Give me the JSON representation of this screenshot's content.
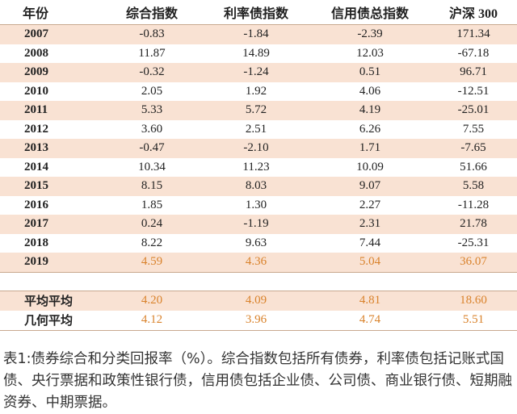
{
  "table": {
    "headers": [
      "年份",
      "综合指数",
      "利率债指数",
      "信用债总指数",
      "沪深 300"
    ],
    "rows": [
      [
        "2007",
        "-0.83",
        "-1.84",
        "-2.39",
        "171.34"
      ],
      [
        "2008",
        "11.87",
        "14.89",
        "12.03",
        "-67.18"
      ],
      [
        "2009",
        "-0.32",
        "-1.24",
        "0.51",
        "96.71"
      ],
      [
        "2010",
        "2.05",
        "1.92",
        "4.06",
        "-12.51"
      ],
      [
        "2011",
        "5.33",
        "5.72",
        "4.19",
        "-25.01"
      ],
      [
        "2012",
        "3.60",
        "2.51",
        "6.26",
        "7.55"
      ],
      [
        "2013",
        "-0.47",
        "-2.10",
        "1.71",
        "-7.65"
      ],
      [
        "2014",
        "10.34",
        "11.23",
        "10.09",
        "51.66"
      ],
      [
        "2015",
        "8.15",
        "8.03",
        "9.07",
        "5.58"
      ],
      [
        "2016",
        "1.85",
        "1.30",
        "2.27",
        "-11.28"
      ],
      [
        "2017",
        "0.24",
        "-1.19",
        "2.31",
        "21.78"
      ],
      [
        "2018",
        "8.22",
        "9.63",
        "7.44",
        "-25.31"
      ],
      [
        "2019",
        "4.59",
        "4.36",
        "5.04",
        "36.07"
      ]
    ],
    "summary": [
      [
        "平均平均",
        "4.20",
        "4.09",
        "4.81",
        "18.60"
      ],
      [
        "几何平均",
        "4.12",
        "3.96",
        "4.74",
        "5.51"
      ]
    ],
    "highlight_color": "#d9822b",
    "stripe_color": "#f9e2d3"
  },
  "caption": "表1:债券综合和分类回报率（%）。综合指数包括所有债券，利率债包括记账式国债、央行票据和政策性银行债，信用债包括企业债、公司债、商业银行债、短期融资券、中期票据。"
}
